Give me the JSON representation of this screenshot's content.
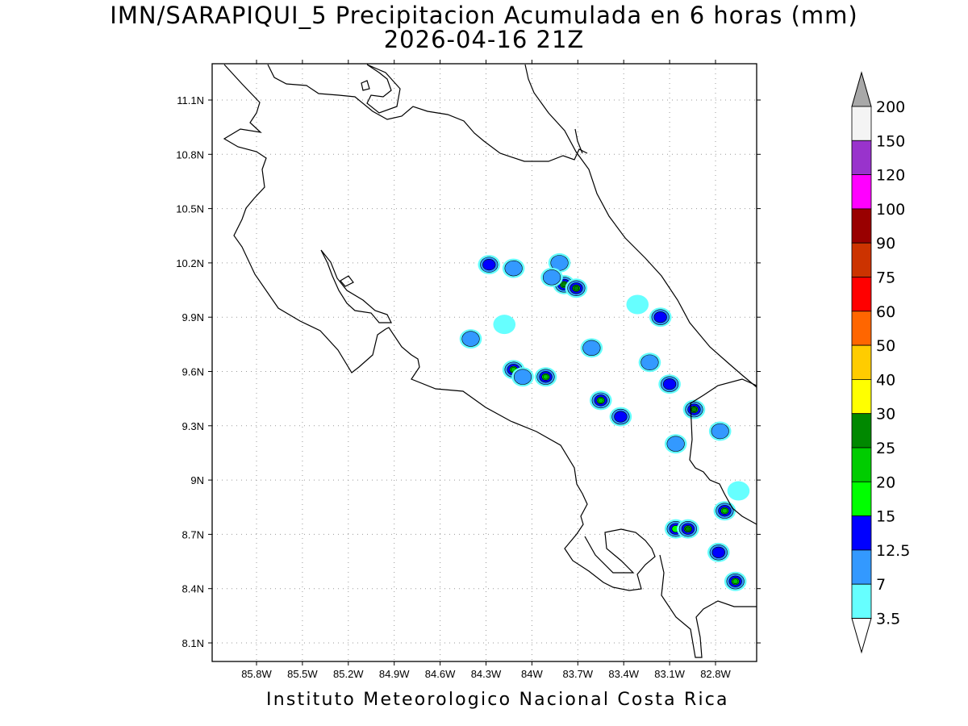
{
  "header": {
    "title": "IMN/SARAPIQUI_5 Precipitacion Acumulada en 6 horas (mm)",
    "subtitle": "2026-04-16 21Z"
  },
  "footer": {
    "credit": "Instituto Meteorologico Nacional Costa Rica"
  },
  "map": {
    "lon_range": [
      -86.0,
      -83.0
    ],
    "lat_range": [
      8.0,
      11.3
    ],
    "lon_ticks": [
      {
        "value": -85.8,
        "label": "85.8W"
      },
      {
        "value": -85.5,
        "label": "85.5W"
      },
      {
        "value": -85.2,
        "label": "85.2W"
      },
      {
        "value": -84.9,
        "label": "84.9W"
      },
      {
        "value": -84.6,
        "label": "84.6W"
      },
      {
        "value": -84.3,
        "label": "84.3W"
      },
      {
        "value": -84.0,
        "label": "84W"
      },
      {
        "value": -83.7,
        "label": "83.7W"
      },
      {
        "value": -83.4,
        "label": "83.4W"
      },
      {
        "value": -83.1,
        "label": "83.1W"
      },
      {
        "value": -82.8,
        "label": "82.8W"
      }
    ],
    "lat_ticks": [
      {
        "value": 8.1,
        "label": "8.1N"
      },
      {
        "value": 8.4,
        "label": "8.4N"
      },
      {
        "value": 8.7,
        "label": "8.7N"
      },
      {
        "value": 9.0,
        "label": "9N"
      },
      {
        "value": 9.3,
        "label": "9.3N"
      },
      {
        "value": 9.6,
        "label": "9.6N"
      },
      {
        "value": 9.9,
        "label": "9.9N"
      },
      {
        "value": 10.2,
        "label": "10.2N"
      },
      {
        "value": 10.5,
        "label": "10.5N"
      },
      {
        "value": 10.8,
        "label": "10.8N"
      },
      {
        "value": 11.1,
        "label": "11.1N"
      }
    ],
    "grid": "dotted",
    "precip_cells": [
      {
        "lon": -84.28,
        "lat": 10.19,
        "mm": 12.5
      },
      {
        "lon": -84.12,
        "lat": 10.17,
        "mm": 7
      },
      {
        "lon": -83.82,
        "lat": 10.2,
        "mm": 7
      },
      {
        "lon": -83.79,
        "lat": 10.08,
        "mm": 25
      },
      {
        "lon": -83.71,
        "lat": 10.06,
        "mm": 25
      },
      {
        "lon": -83.87,
        "lat": 10.12,
        "mm": 7
      },
      {
        "lon": -83.16,
        "lat": 9.9,
        "mm": 12.5
      },
      {
        "lon": -83.31,
        "lat": 9.97,
        "mm": 3.5
      },
      {
        "lon": -84.4,
        "lat": 9.78,
        "mm": 7
      },
      {
        "lon": -84.18,
        "lat": 9.86,
        "mm": 3.5
      },
      {
        "lon": -83.61,
        "lat": 9.73,
        "mm": 7
      },
      {
        "lon": -84.12,
        "lat": 9.61,
        "mm": 20
      },
      {
        "lon": -84.06,
        "lat": 9.57,
        "mm": 7
      },
      {
        "lon": -83.91,
        "lat": 9.57,
        "mm": 20
      },
      {
        "lon": -83.55,
        "lat": 9.44,
        "mm": 20
      },
      {
        "lon": -83.42,
        "lat": 9.35,
        "mm": 12.5
      },
      {
        "lon": -83.1,
        "lat": 9.53,
        "mm": 12.5
      },
      {
        "lon": -82.94,
        "lat": 9.39,
        "mm": 25
      },
      {
        "lon": -82.77,
        "lat": 9.27,
        "mm": 7
      },
      {
        "lon": -83.06,
        "lat": 9.2,
        "mm": 7
      },
      {
        "lon": -82.74,
        "lat": 8.83,
        "mm": 20
      },
      {
        "lon": -83.06,
        "lat": 8.73,
        "mm": 15
      },
      {
        "lon": -82.98,
        "lat": 8.73,
        "mm": 25
      },
      {
        "lon": -82.78,
        "lat": 8.6,
        "mm": 12.5
      },
      {
        "lon": -82.67,
        "lat": 8.44,
        "mm": 20
      },
      {
        "lon": -82.65,
        "lat": 8.94,
        "mm": 3.5
      },
      {
        "lon": -83.23,
        "lat": 9.65,
        "mm": 7
      }
    ]
  },
  "colorbar": {
    "levels": [
      {
        "label": "3.5",
        "color": "#66ffff"
      },
      {
        "label": "7",
        "color": "#3399ff"
      },
      {
        "label": "12.5",
        "color": "#0000ff"
      },
      {
        "label": "15",
        "color": "#00ff00"
      },
      {
        "label": "20",
        "color": "#00cc00"
      },
      {
        "label": "25",
        "color": "#008800"
      },
      {
        "label": "30",
        "color": "#ffff00"
      },
      {
        "label": "40",
        "color": "#ffcc00"
      },
      {
        "label": "50",
        "color": "#ff6600"
      },
      {
        "label": "60",
        "color": "#ff0000"
      },
      {
        "label": "75",
        "color": "#cc3300"
      },
      {
        "label": "90",
        "color": "#990000"
      },
      {
        "label": "100",
        "color": "#ff00ff"
      },
      {
        "label": "120",
        "color": "#9933cc"
      },
      {
        "label": "150",
        "color": "#f4f4f4"
      },
      {
        "label": "200",
        "color": "#b0b0b0"
      }
    ],
    "under_color": "#ffffff",
    "over_color": "#a8a8a8"
  }
}
